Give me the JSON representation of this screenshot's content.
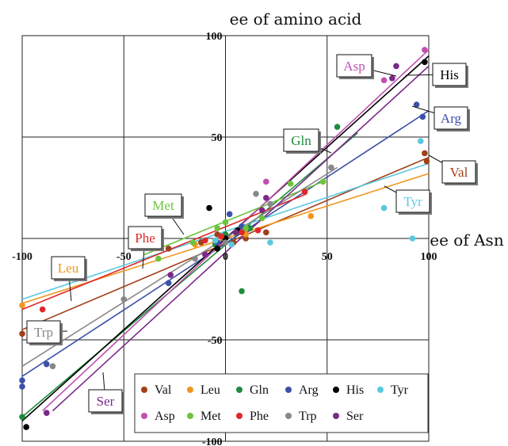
{
  "chart_data": {
    "type": "scatter",
    "title": "ee of amino acid",
    "xlabel": "ee of Asn",
    "ylabel": "ee of amino acid",
    "xlim": [
      -100,
      100
    ],
    "ylim": [
      -100,
      100
    ],
    "grid": true,
    "x_ticks": [
      "-100",
      "-50",
      "0",
      "50",
      "100"
    ],
    "y_ticks": [
      "100",
      "50",
      "-50",
      "-100"
    ],
    "legend_position": "bottom-right",
    "series": [
      {
        "name": "Val",
        "color": "#a0401a",
        "x1": -100,
        "x2": 100,
        "y1": -45,
        "y2": 40,
        "points": [
          [
            -100,
            -47
          ],
          [
            -28,
            -5
          ],
          [
            -12,
            -2
          ],
          [
            -4,
            2
          ],
          [
            4,
            -2
          ],
          [
            10,
            0
          ],
          [
            20,
            3
          ],
          [
            98,
            42
          ],
          [
            99,
            38
          ]
        ]
      },
      {
        "name": "Leu",
        "color": "#f0961e",
        "x1": -100,
        "x2": 100,
        "y1": -32,
        "y2": 32,
        "points": [
          [
            -100,
            -33
          ],
          [
            -15,
            -3
          ],
          [
            -5,
            -1
          ],
          [
            10,
            2
          ],
          [
            42,
            11
          ]
        ]
      },
      {
        "name": "Gln",
        "color": "#1e8c3c",
        "x1": -100,
        "x2": 65,
        "y1": -88,
        "y2": 52,
        "points": [
          [
            -100,
            -88
          ],
          [
            -5,
            -3
          ],
          [
            0,
            2
          ],
          [
            8,
            -26
          ],
          [
            12,
            5
          ],
          [
            55,
            55
          ]
        ]
      },
      {
        "name": "Arg",
        "color": "#3c50a8",
        "x1": -100,
        "x2": 100,
        "y1": -68,
        "y2": 63,
        "points": [
          [
            -100,
            -70
          ],
          [
            -100,
            -73
          ],
          [
            -88,
            -62
          ],
          [
            -28,
            -22
          ],
          [
            -4,
            -2
          ],
          [
            2,
            12
          ],
          [
            8,
            6
          ],
          [
            94,
            66
          ],
          [
            97,
            60
          ]
        ]
      },
      {
        "name": "His",
        "color": "#000000",
        "x1": -100,
        "x2": 100,
        "y1": -90,
        "y2": 90,
        "points": [
          [
            -98,
            -93
          ],
          [
            -8,
            15
          ],
          [
            -4,
            -5
          ],
          [
            0,
            0
          ],
          [
            6,
            4
          ],
          [
            98,
            87
          ]
        ]
      },
      {
        "name": "Tyr",
        "color": "#5bc8e0",
        "x1": -100,
        "x2": 100,
        "y1": -30,
        "y2": 37,
        "points": [
          [
            -5,
            -1
          ],
          [
            3,
            -3
          ],
          [
            22,
            -2
          ],
          [
            78,
            15
          ],
          [
            92,
            0
          ],
          [
            96,
            48
          ]
        ]
      },
      {
        "name": "Asp",
        "color": "#c050b0",
        "x1": -90,
        "x2": 100,
        "y1": -85,
        "y2": 93,
        "points": [
          [
            -88,
            -86
          ],
          [
            20,
            28
          ],
          [
            78,
            78
          ],
          [
            98,
            93
          ]
        ]
      },
      {
        "name": "Met",
        "color": "#6cc43c",
        "x1": -40,
        "x2": 48,
        "y1": -8,
        "y2": 28,
        "points": [
          [
            -33,
            -10
          ],
          [
            -16,
            -2
          ],
          [
            -4,
            5
          ],
          [
            0,
            8
          ],
          [
            10,
            5
          ],
          [
            18,
            10
          ],
          [
            32,
            27
          ],
          [
            48,
            28
          ]
        ]
      },
      {
        "name": "Phe",
        "color": "#e0282a",
        "x1": -100,
        "x2": 40,
        "y1": -35,
        "y2": 22,
        "points": [
          [
            -90,
            -35
          ],
          [
            -10,
            -1
          ],
          [
            -2,
            1
          ],
          [
            8,
            3
          ],
          [
            16,
            4
          ],
          [
            39,
            23
          ]
        ]
      },
      {
        "name": "Trp",
        "color": "#888888",
        "x1": -100,
        "x2": 55,
        "y1": -63,
        "y2": 35,
        "points": [
          [
            -85,
            -63
          ],
          [
            -50,
            -30
          ],
          [
            -15,
            -10
          ],
          [
            0,
            -2
          ],
          [
            15,
            22
          ],
          [
            22,
            17
          ],
          [
            52,
            35
          ]
        ]
      },
      {
        "name": "Ser",
        "color": "#7a2a8a",
        "x1": -85,
        "x2": 100,
        "y1": -85,
        "y2": 85,
        "points": [
          [
            -88,
            -86
          ],
          [
            -27,
            -18
          ],
          [
            -10,
            -8
          ],
          [
            5,
            3
          ],
          [
            18,
            14
          ],
          [
            20,
            20
          ],
          [
            82,
            79
          ],
          [
            84,
            85
          ]
        ]
      }
    ],
    "legend": {
      "row1": [
        "Val",
        "Leu",
        "Gln",
        "Arg",
        "His",
        "Tyr"
      ],
      "row2": [
        "Asp",
        "Met",
        "Phe",
        "Trp",
        "Ser"
      ]
    },
    "callouts": [
      {
        "text": "Asp",
        "color": "#c050b0",
        "series": "Asp"
      },
      {
        "text": "His",
        "color": "#000000",
        "series": "His"
      },
      {
        "text": "Arg",
        "color": "#3c50a8",
        "series": "Arg"
      },
      {
        "text": "Gln",
        "color": "#1e8c3c",
        "series": "Gln"
      },
      {
        "text": "Val",
        "color": "#a0401a",
        "series": "Val"
      },
      {
        "text": "Tyr",
        "color": "#5bc8e0",
        "series": "Tyr"
      },
      {
        "text": "Met",
        "color": "#6cc43c",
        "series": "Met"
      },
      {
        "text": "Phe",
        "color": "#e0282a",
        "series": "Phe"
      },
      {
        "text": "Leu",
        "color": "#f0961e",
        "series": "Leu"
      },
      {
        "text": "Trp",
        "color": "#888888",
        "series": "Trp"
      },
      {
        "text": "Ser",
        "color": "#7a2a8a",
        "series": "Ser"
      }
    ]
  }
}
